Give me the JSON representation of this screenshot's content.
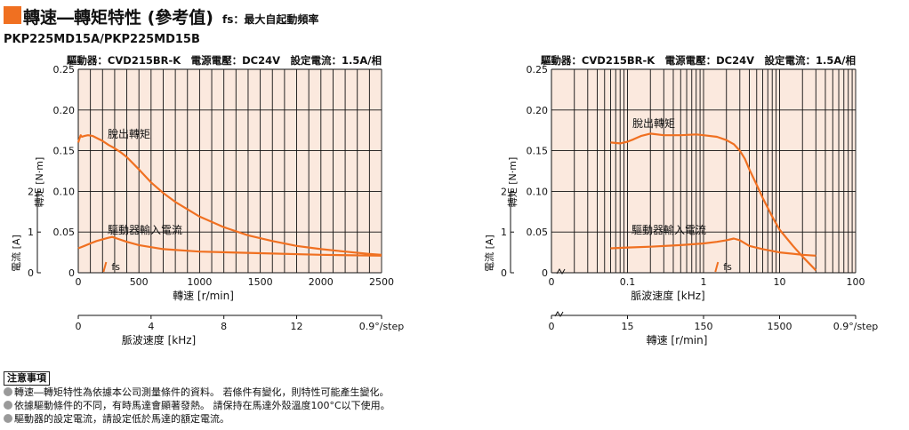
{
  "header": {
    "title": "轉速―轉矩特性 (參考值)",
    "subtitle": "fs：最大自起動頻率",
    "model": "PKP225MD15A/PKP225MD15B"
  },
  "colors": {
    "accent": "#f07021",
    "plot_bg": "#fbe9de",
    "curve": "#f07021",
    "grid": "#111111",
    "bullet": "#9a9a9a"
  },
  "chart_data": [
    {
      "type": "line",
      "x_scale": "linear",
      "info": "驅動器：CVD215BR-K　電源電壓：DC24V　設定電流：1.5A/相",
      "xlabel": "轉速 [r/min]",
      "ylabel": "轉矩 [N·m]",
      "y2label": "電流 [A]",
      "xlim": [
        0,
        2500
      ],
      "ylim": [
        0,
        0.25
      ],
      "xticks": [
        "0",
        "500",
        "1000",
        "1500",
        "2000",
        "2500"
      ],
      "yticks": [
        "0",
        "0.05",
        "0.10",
        "0.15",
        "0.20",
        "0.25"
      ],
      "y2ticks": [
        "0",
        "1",
        "2"
      ],
      "grid": true,
      "secondary_axis": {
        "label": "脈波速度 [kHz]",
        "ticks": [
          "0",
          "4",
          "8",
          "12",
          "0.9°/step"
        ]
      },
      "series": [
        {
          "name": "脫出轉矩",
          "x": [
            0,
            10,
            20,
            30,
            50,
            80,
            120,
            160,
            200,
            250,
            300,
            350,
            400,
            500,
            600,
            700,
            800,
            1000,
            1200,
            1400,
            1600,
            1800,
            2000,
            2200,
            2400,
            2500
          ],
          "values": [
            0.16,
            0.165,
            0.169,
            0.167,
            0.168,
            0.169,
            0.168,
            0.165,
            0.162,
            0.157,
            0.153,
            0.148,
            0.142,
            0.127,
            0.111,
            0.098,
            0.087,
            0.069,
            0.056,
            0.046,
            0.039,
            0.033,
            0.029,
            0.026,
            0.023,
            0.022
          ]
        },
        {
          "name": "驅動器輸入電流",
          "x": [
            0,
            50,
            100,
            150,
            200,
            250,
            280,
            320,
            400,
            500,
            700,
            1000,
            1500,
            2000,
            2500
          ],
          "values": [
            0.03,
            0.033,
            0.036,
            0.039,
            0.041,
            0.043,
            0.044,
            0.042,
            0.038,
            0.034,
            0.029,
            0.026,
            0.024,
            0.022,
            0.021
          ]
        }
      ],
      "annotations": [
        {
          "label": "fs",
          "x": 230,
          "y": 0.006
        }
      ]
    },
    {
      "type": "line",
      "x_scale": "log",
      "info": "驅動器：CVD215BR-K　電源電壓：DC24V　設定電流：1.5A/相",
      "xlabel": "脈波速度 [kHz]",
      "ylabel": "轉矩 [N·m]",
      "y2label": "電流 [A]",
      "xlim": [
        0.01,
        100
      ],
      "ylim": [
        0,
        0.25
      ],
      "xticks": [
        "0",
        "0.1",
        "1",
        "10",
        "100"
      ],
      "yticks": [
        "0",
        "0.05",
        "0.10",
        "0.15",
        "0.20",
        "0.25"
      ],
      "y2ticks": [
        "0",
        "1",
        "2"
      ],
      "grid": true,
      "secondary_axis": {
        "label": "轉速 [r/min]",
        "ticks": [
          "0",
          "15",
          "150",
          "1500",
          "0.9°/step"
        ]
      },
      "series": [
        {
          "name": "脫出轉矩",
          "x": [
            0.06,
            0.08,
            0.1,
            0.12,
            0.15,
            0.2,
            0.3,
            0.5,
            0.8,
            1,
            1.5,
            2,
            2.5,
            3,
            3.5,
            4,
            5,
            6,
            8,
            10,
            15,
            20,
            30
          ],
          "values": [
            0.16,
            0.159,
            0.161,
            0.164,
            0.168,
            0.171,
            0.169,
            0.169,
            0.17,
            0.169,
            0.167,
            0.163,
            0.158,
            0.15,
            0.14,
            0.127,
            0.108,
            0.092,
            0.069,
            0.053,
            0.033,
            0.02,
            0.003
          ]
        },
        {
          "name": "驅動器輸入電流",
          "x": [
            0.06,
            0.1,
            0.2,
            0.5,
            1,
            1.5,
            2,
            2.5,
            3,
            4,
            6,
            10,
            20,
            30
          ],
          "values": [
            0.03,
            0.031,
            0.032,
            0.034,
            0.036,
            0.038,
            0.04,
            0.042,
            0.04,
            0.033,
            0.029,
            0.025,
            0.022,
            0.021
          ]
        }
      ],
      "annotations": [
        {
          "label": "fs",
          "x": 1.55,
          "y": 0.006
        }
      ]
    }
  ],
  "notes": {
    "heading": "注意事項",
    "items": [
      "轉速―轉矩特性為依據本公司測量條件的資料。 若條件有變化，則特性可能產生變化。",
      "依據驅動條件的不同，有時馬達會顯著發熱。 請保持在馬達外殼溫度100°C以下使用。",
      "驅動器的設定電流，請設定低於馬達的額定電流。"
    ]
  }
}
